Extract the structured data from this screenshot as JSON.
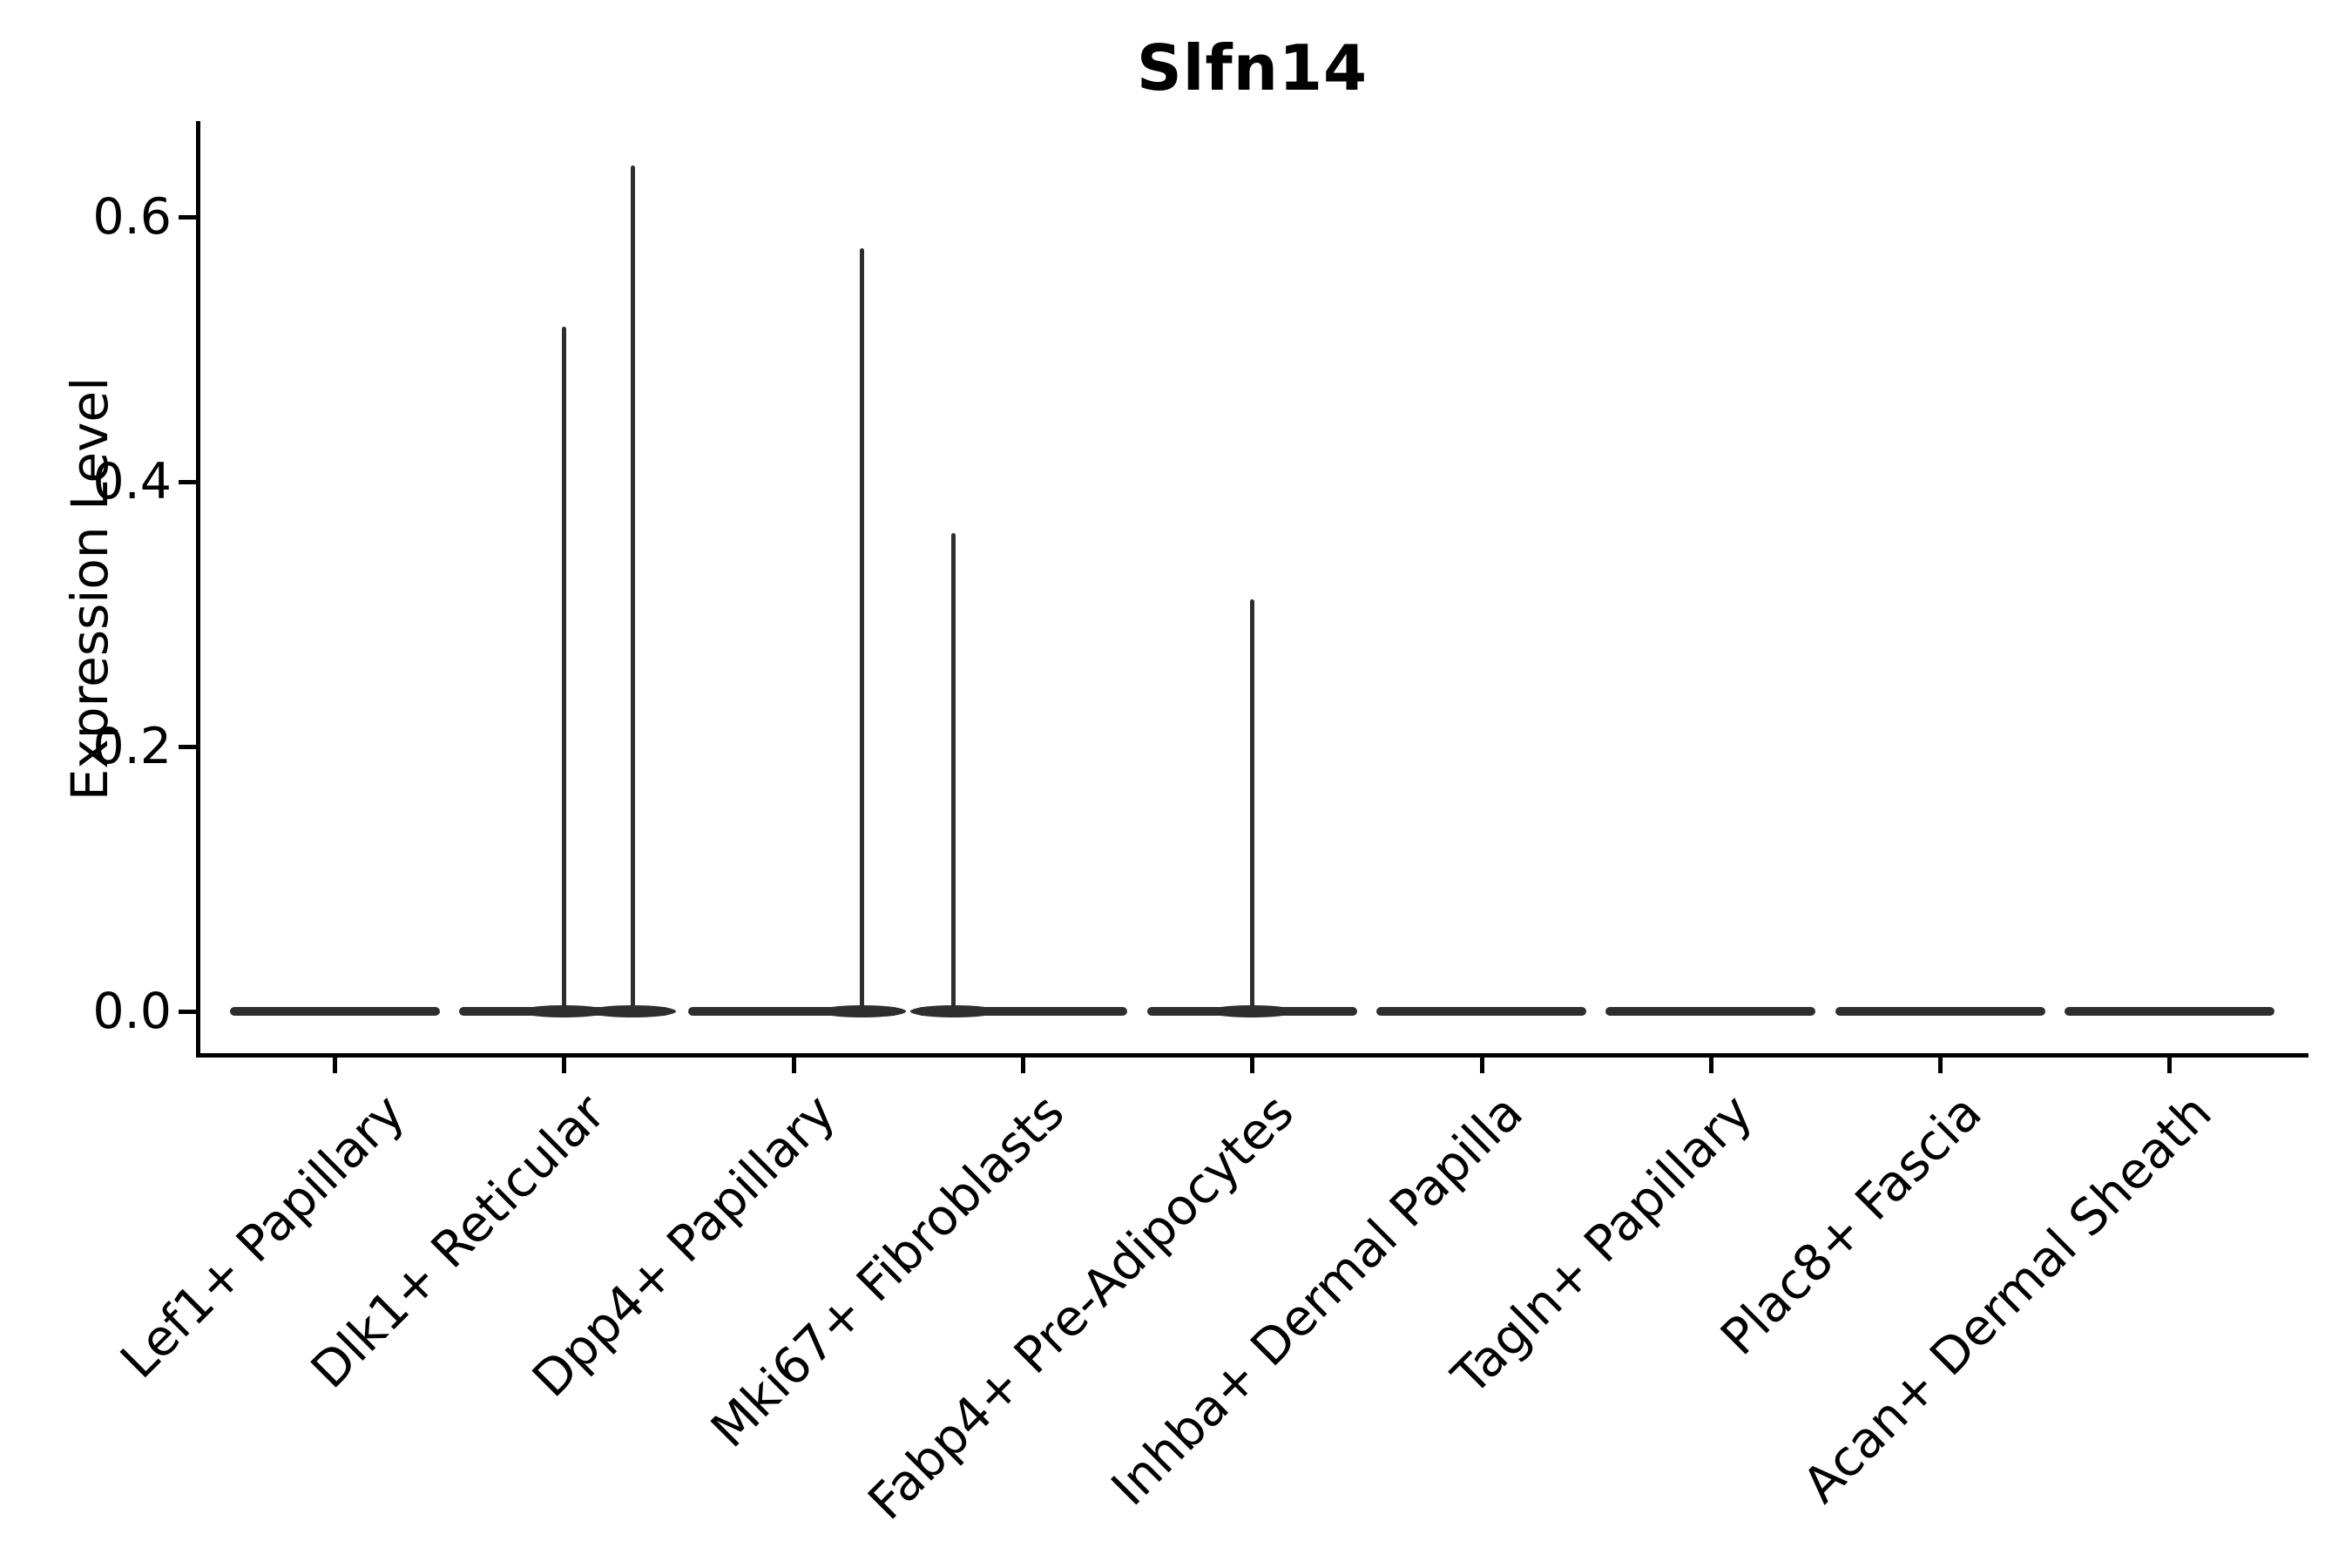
{
  "title": "Slfn14",
  "y_axis": {
    "label": "Expression Level",
    "tick_labels": [
      "0.0",
      "0.2",
      "0.4",
      "0.6"
    ]
  },
  "x_axis": {
    "categories": [
      "Lef1+ Papillary",
      "Dlk1+ Reticular",
      "Dpp4+ Papillary",
      "Mki67+ Fibroblasts",
      "Fabp4+ Pre-Adipocytes",
      "Inhba+ Dermal Papilla",
      "Tagln+ Papillary",
      "Plac8+ Fascia",
      "Acan+ Dermal Sheath"
    ]
  },
  "chart_data": {
    "type": "violin",
    "title": "Slfn14",
    "xlabel": "",
    "ylabel": "Expression Level",
    "categories": [
      "Lef1+ Papillary",
      "Dlk1+ Reticular",
      "Dpp4+ Papillary",
      "Mki67+ Fibroblasts",
      "Fabp4+ Pre-Adipocytes",
      "Inhba+ Dermal Papilla",
      "Tagln+ Papillary",
      "Plac8+ Fascia",
      "Acan+ Dermal Sheath"
    ],
    "series": [
      {
        "name": "Lef1+ Papillary",
        "baseline_value": 0.0,
        "max_expression": 0.0,
        "spikes": []
      },
      {
        "name": "Dlk1+ Reticular",
        "baseline_value": 0.0,
        "max_expression": 0.64,
        "spikes": [
          {
            "offset": 0.0,
            "value": 0.517
          },
          {
            "offset": 0.3,
            "value": 0.639
          }
        ]
      },
      {
        "name": "Dpp4+ Papillary",
        "baseline_value": 0.0,
        "max_expression": 0.58,
        "spikes": [
          {
            "offset": 0.3,
            "value": 0.576
          }
        ]
      },
      {
        "name": "Mki67+ Fibroblasts",
        "baseline_value": 0.0,
        "max_expression": 0.36,
        "spikes": [
          {
            "offset": -0.3,
            "value": 0.361
          }
        ]
      },
      {
        "name": "Fabp4+ Pre-Adipocytes",
        "baseline_value": 0.0,
        "max_expression": 0.31,
        "spikes": [
          {
            "offset": 0.0,
            "value": 0.311
          }
        ]
      },
      {
        "name": "Inhba+ Dermal Papilla",
        "baseline_value": 0.0,
        "max_expression": 0.0,
        "spikes": []
      },
      {
        "name": "Tagln+ Papillary",
        "baseline_value": 0.0,
        "max_expression": 0.0,
        "spikes": []
      },
      {
        "name": "Plac8+ Fascia",
        "baseline_value": 0.0,
        "max_expression": 0.0,
        "spikes": []
      },
      {
        "name": "Acan+ Dermal Sheath",
        "baseline_value": 0.0,
        "max_expression": 0.0,
        "spikes": []
      }
    ],
    "y_ticks": [
      0.0,
      0.2,
      0.4,
      0.6
    ],
    "ylim": [
      0.0,
      0.67
    ],
    "grid": false,
    "legend": "none",
    "violin_color": "#2e2e2e",
    "axis_color": "#000000"
  }
}
